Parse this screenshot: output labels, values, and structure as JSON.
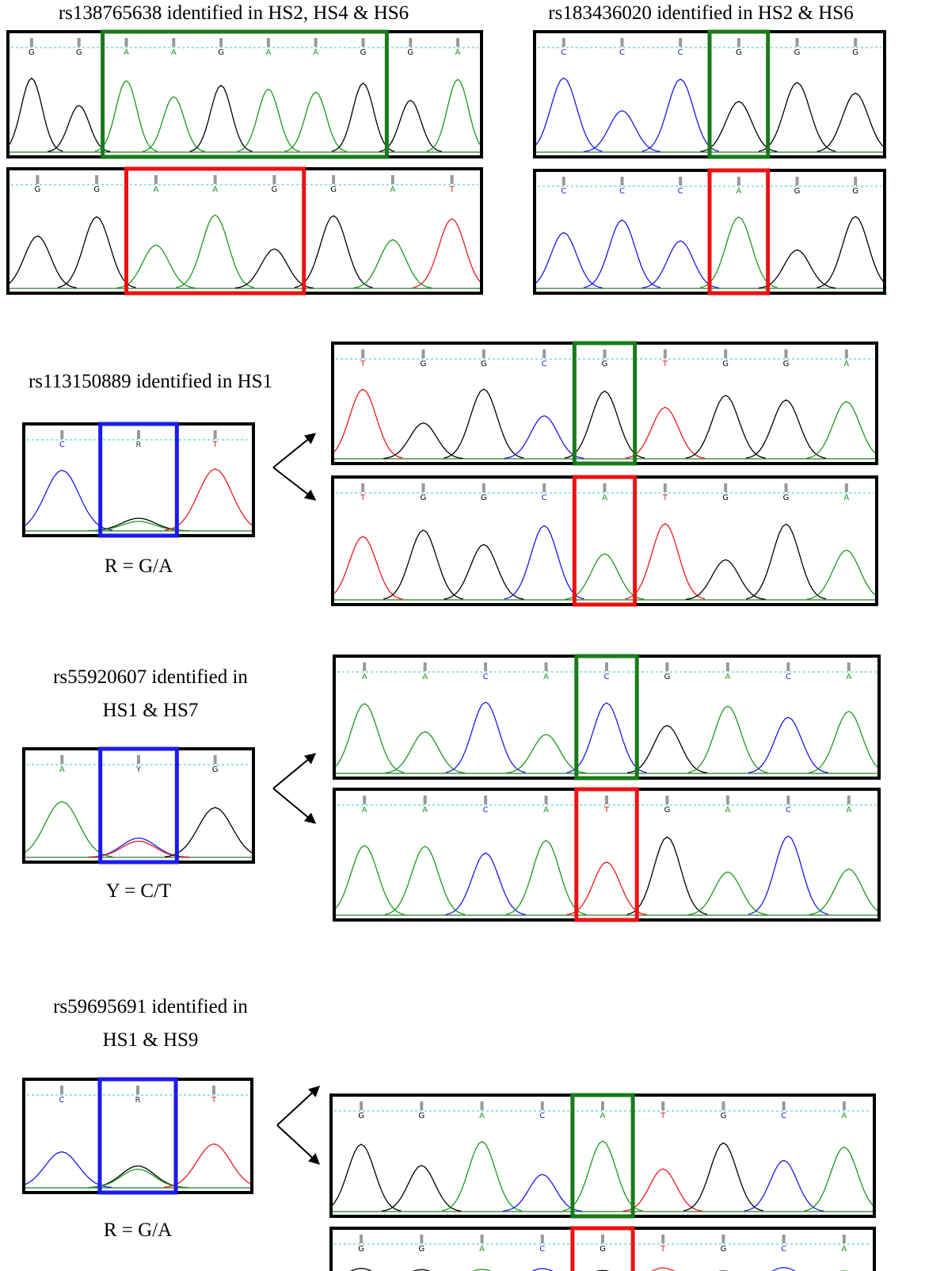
{
  "sections": [
    {
      "title": "rs138765638 identified in HS2, HS4 & HS6",
      "panels": [
        {
          "bases": [
            "G",
            "G",
            "A",
            "A",
            "G",
            "A",
            "A",
            "G",
            "G",
            "A"
          ]
        },
        {
          "bases": [
            "G",
            "G",
            "A",
            "A",
            "G",
            "G",
            "A",
            "T"
          ]
        }
      ]
    },
    {
      "title": "rs183436020 identified in HS2 & HS6",
      "panels": [
        {
          "bases": [
            "C",
            "C",
            "C",
            "G",
            "G",
            "G"
          ]
        },
        {
          "bases": [
            "C",
            "C",
            "C",
            "A",
            "G",
            "G"
          ]
        }
      ]
    },
    {
      "title": "rs113150889 identified in HS1",
      "het": {
        "bases": [
          "C",
          "R",
          "T"
        ]
      },
      "key": "R = G/A",
      "panels": [
        {
          "bases": [
            "T",
            "G",
            "G",
            "C",
            "G",
            "T",
            "G",
            "G",
            "A"
          ]
        },
        {
          "bases": [
            "T",
            "G",
            "G",
            "C",
            "A",
            "T",
            "G",
            "G",
            "A"
          ]
        }
      ]
    },
    {
      "title_lines": [
        "rs55920607 identified in",
        "HS1 & HS7"
      ],
      "het": {
        "bases": [
          "A",
          "Y",
          "G"
        ]
      },
      "key": "Y = C/T",
      "panels": [
        {
          "bases": [
            "A",
            "A",
            "C",
            "A",
            "C",
            "G",
            "A",
            "C",
            "A"
          ]
        },
        {
          "bases": [
            "A",
            "A",
            "C",
            "A",
            "T",
            "G",
            "A",
            "C",
            "A"
          ]
        }
      ]
    },
    {
      "title_lines": [
        "rs59695691 identified in",
        "HS1 & HS9"
      ],
      "het": {
        "bases": [
          "C",
          "R",
          "T"
        ]
      },
      "key": "R = G/A",
      "panels": [
        {
          "bases": [
            "G",
            "G",
            "A",
            "C",
            "A",
            "T",
            "G",
            "C",
            "A"
          ]
        },
        {
          "bases": [
            "G",
            "G",
            "A",
            "C",
            "G",
            "T",
            "G",
            "C",
            "A"
          ]
        }
      ]
    }
  ]
}
